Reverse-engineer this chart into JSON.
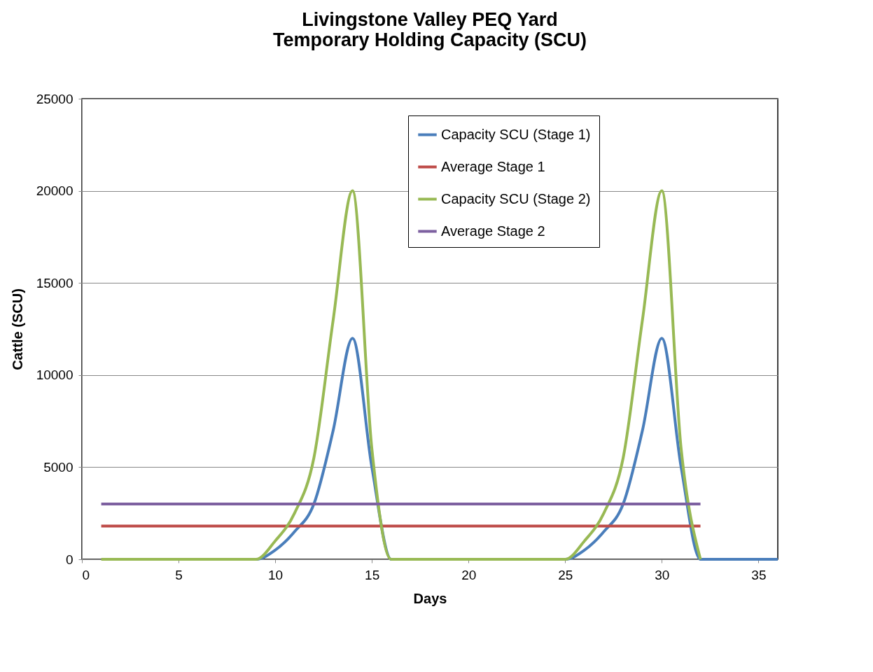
{
  "chart_data": {
    "type": "line",
    "title": "Livingstone Valley PEQ Yard\nTemporary Holding Capacity (SCU)",
    "xlabel": "Days",
    "ylabel": "Cattle (SCU)",
    "series": [
      {
        "name": "Capacity SCU (Stage 1)",
        "color": "#4a7ebb",
        "x": [
          8,
          9,
          10,
          11,
          12,
          13,
          14,
          15,
          16,
          17,
          18,
          19,
          20,
          21,
          22,
          23,
          24,
          25,
          26,
          27,
          28,
          29,
          30,
          31,
          32,
          33,
          34,
          35,
          36
        ],
        "values": [
          0,
          0,
          500,
          1500,
          3000,
          7000,
          12000,
          5000,
          0,
          0,
          0,
          0,
          0,
          0,
          0,
          0,
          0,
          0,
          500,
          1500,
          3000,
          7000,
          12000,
          5000,
          0,
          0,
          0,
          0,
          0
        ]
      },
      {
        "name": "Average Stage 1",
        "color": "#be4b48",
        "x": [
          1,
          32
        ],
        "values": [
          1800,
          1800
        ]
      },
      {
        "name": "Capacity SCU (Stage 2)",
        "color": "#98b954",
        "x": [
          1,
          2,
          3,
          4,
          5,
          6,
          7,
          8,
          9,
          10,
          11,
          12,
          13,
          14,
          15,
          16,
          17,
          18,
          19,
          20,
          21,
          22,
          23,
          24,
          25,
          26,
          27,
          28,
          29,
          30,
          31,
          32
        ],
        "values": [
          0,
          0,
          0,
          0,
          0,
          0,
          0,
          0,
          0,
          1000,
          2500,
          5500,
          13000,
          20000,
          6000,
          0,
          0,
          0,
          0,
          0,
          0,
          0,
          0,
          0,
          0,
          1000,
          2500,
          5500,
          13000,
          20000,
          6000,
          0
        ]
      },
      {
        "name": "Average Stage 2",
        "color": "#7d60a0",
        "x": [
          1,
          32
        ],
        "values": [
          3000,
          3000
        ]
      }
    ],
    "xlim": [
      0,
      36
    ],
    "xticks": [
      0,
      5,
      10,
      15,
      20,
      25,
      30,
      35
    ],
    "ylim": [
      0,
      25000
    ],
    "yticks": [
      0,
      5000,
      10000,
      15000,
      20000,
      25000
    ],
    "grid": "y",
    "legend": "top right",
    "marker": "none",
    "line_style": "solid"
  }
}
